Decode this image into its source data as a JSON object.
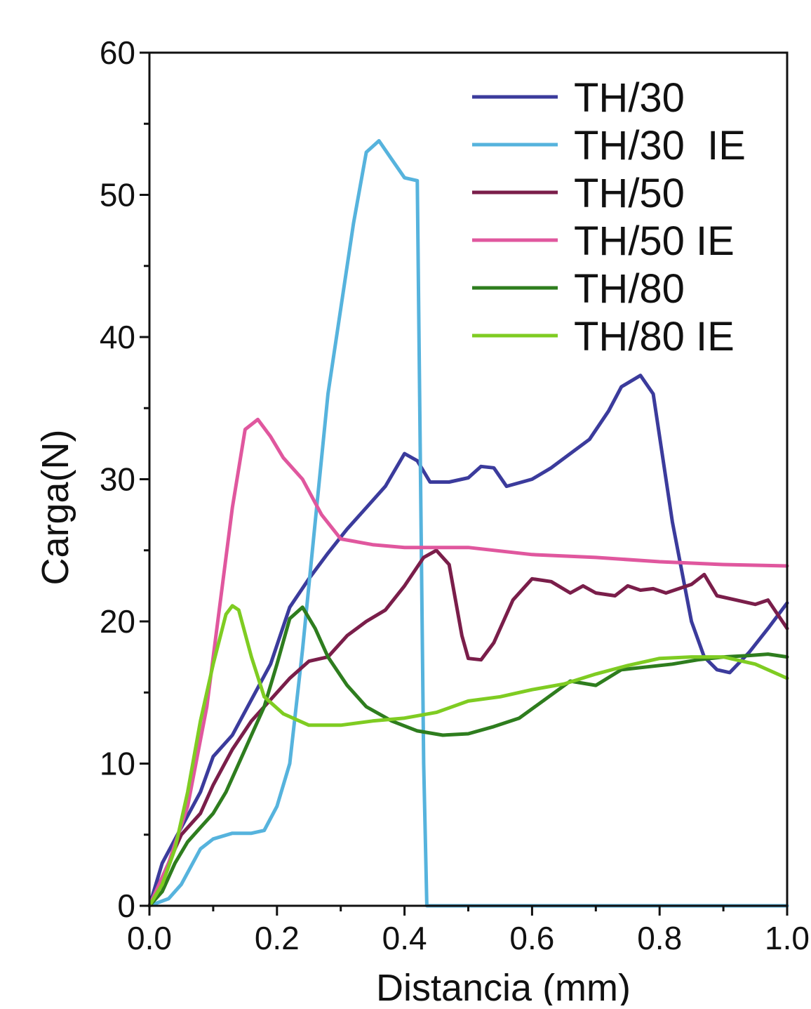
{
  "chart_data": {
    "type": "line",
    "title": "",
    "xlabel": "Distancia (mm)",
    "ylabel": "Carga(N)",
    "xlim": [
      0.0,
      1.0
    ],
    "ylim": [
      0,
      60
    ],
    "grid": false,
    "legend_position": "top-right",
    "x_ticks": [
      "0.0",
      "0.2",
      "0.4",
      "0.6",
      "0.8",
      "1.0"
    ],
    "y_ticks": [
      "0",
      "10",
      "20",
      "30",
      "40",
      "50",
      "60"
    ],
    "series": [
      {
        "name": "TH/30",
        "color": "#3b3b9c",
        "points": [
          [
            0.0,
            0
          ],
          [
            0.02,
            3
          ],
          [
            0.05,
            5.5
          ],
          [
            0.08,
            8
          ],
          [
            0.1,
            10.5
          ],
          [
            0.13,
            12
          ],
          [
            0.16,
            14.5
          ],
          [
            0.19,
            17
          ],
          [
            0.22,
            21
          ],
          [
            0.25,
            23
          ],
          [
            0.28,
            24.8
          ],
          [
            0.31,
            26.5
          ],
          [
            0.34,
            28
          ],
          [
            0.37,
            29.5
          ],
          [
            0.4,
            31.8
          ],
          [
            0.42,
            31.3
          ],
          [
            0.44,
            29.8
          ],
          [
            0.47,
            29.8
          ],
          [
            0.5,
            30.1
          ],
          [
            0.52,
            30.9
          ],
          [
            0.54,
            30.8
          ],
          [
            0.56,
            29.5
          ],
          [
            0.6,
            30
          ],
          [
            0.63,
            30.8
          ],
          [
            0.66,
            31.8
          ],
          [
            0.69,
            32.8
          ],
          [
            0.72,
            34.8
          ],
          [
            0.74,
            36.5
          ],
          [
            0.77,
            37.3
          ],
          [
            0.79,
            36
          ],
          [
            0.82,
            27
          ],
          [
            0.85,
            20
          ],
          [
            0.87,
            17.5
          ],
          [
            0.89,
            16.6
          ],
          [
            0.91,
            16.4
          ],
          [
            0.94,
            17.8
          ],
          [
            0.97,
            19.5
          ],
          [
            1.0,
            21.3
          ]
        ]
      },
      {
        "name": "TH/30  IE",
        "color": "#56b3dd",
        "points": [
          [
            0.0,
            0
          ],
          [
            0.03,
            0.5
          ],
          [
            0.05,
            1.5
          ],
          [
            0.08,
            4
          ],
          [
            0.1,
            4.7
          ],
          [
            0.13,
            5.1
          ],
          [
            0.16,
            5.1
          ],
          [
            0.18,
            5.3
          ],
          [
            0.2,
            7
          ],
          [
            0.22,
            10
          ],
          [
            0.24,
            18
          ],
          [
            0.26,
            27
          ],
          [
            0.28,
            36
          ],
          [
            0.3,
            42
          ],
          [
            0.32,
            48
          ],
          [
            0.34,
            53
          ],
          [
            0.36,
            53.8
          ],
          [
            0.38,
            52.5
          ],
          [
            0.4,
            51.2
          ],
          [
            0.42,
            51
          ],
          [
            0.43,
            10
          ],
          [
            0.435,
            0
          ],
          [
            1.0,
            0
          ]
        ]
      },
      {
        "name": "TH/50",
        "color": "#7a1e4a",
        "points": [
          [
            0.0,
            0
          ],
          [
            0.03,
            3
          ],
          [
            0.05,
            5
          ],
          [
            0.08,
            6.5
          ],
          [
            0.1,
            8.5
          ],
          [
            0.13,
            11
          ],
          [
            0.16,
            13
          ],
          [
            0.19,
            14.5
          ],
          [
            0.22,
            16
          ],
          [
            0.25,
            17.2
          ],
          [
            0.28,
            17.5
          ],
          [
            0.31,
            19
          ],
          [
            0.34,
            20
          ],
          [
            0.37,
            20.8
          ],
          [
            0.4,
            22.5
          ],
          [
            0.43,
            24.5
          ],
          [
            0.45,
            25
          ],
          [
            0.47,
            24
          ],
          [
            0.49,
            19
          ],
          [
            0.5,
            17.4
          ],
          [
            0.52,
            17.3
          ],
          [
            0.54,
            18.5
          ],
          [
            0.57,
            21.5
          ],
          [
            0.6,
            23
          ],
          [
            0.63,
            22.8
          ],
          [
            0.66,
            22
          ],
          [
            0.68,
            22.5
          ],
          [
            0.7,
            22
          ],
          [
            0.73,
            21.8
          ],
          [
            0.75,
            22.5
          ],
          [
            0.77,
            22.2
          ],
          [
            0.79,
            22.3
          ],
          [
            0.81,
            22
          ],
          [
            0.83,
            22.3
          ],
          [
            0.85,
            22.6
          ],
          [
            0.87,
            23.3
          ],
          [
            0.89,
            21.8
          ],
          [
            0.92,
            21.5
          ],
          [
            0.95,
            21.2
          ],
          [
            0.97,
            21.5
          ],
          [
            1.0,
            19.5
          ]
        ]
      },
      {
        "name": "TH/50 IE",
        "color": "#e0579e",
        "points": [
          [
            0.0,
            0
          ],
          [
            0.03,
            3
          ],
          [
            0.06,
            7
          ],
          [
            0.09,
            14
          ],
          [
            0.11,
            21
          ],
          [
            0.13,
            28
          ],
          [
            0.15,
            33.5
          ],
          [
            0.17,
            34.2
          ],
          [
            0.19,
            33
          ],
          [
            0.21,
            31.5
          ],
          [
            0.24,
            30
          ],
          [
            0.27,
            27.5
          ],
          [
            0.3,
            25.8
          ],
          [
            0.35,
            25.4
          ],
          [
            0.4,
            25.2
          ],
          [
            0.5,
            25.2
          ],
          [
            0.6,
            24.7
          ],
          [
            0.7,
            24.5
          ],
          [
            0.8,
            24.2
          ],
          [
            0.9,
            24
          ],
          [
            1.0,
            23.9
          ]
        ]
      },
      {
        "name": "TH/80",
        "color": "#2e7d1e",
        "points": [
          [
            0.0,
            0
          ],
          [
            0.02,
            1
          ],
          [
            0.04,
            3
          ],
          [
            0.06,
            4.5
          ],
          [
            0.08,
            5.5
          ],
          [
            0.1,
            6.5
          ],
          [
            0.12,
            8
          ],
          [
            0.14,
            10
          ],
          [
            0.16,
            12
          ],
          [
            0.18,
            14
          ],
          [
            0.2,
            17
          ],
          [
            0.22,
            20.2
          ],
          [
            0.24,
            21
          ],
          [
            0.26,
            19.5
          ],
          [
            0.28,
            17.5
          ],
          [
            0.31,
            15.5
          ],
          [
            0.34,
            14
          ],
          [
            0.38,
            13
          ],
          [
            0.42,
            12.3
          ],
          [
            0.46,
            12
          ],
          [
            0.5,
            12.1
          ],
          [
            0.54,
            12.6
          ],
          [
            0.58,
            13.2
          ],
          [
            0.62,
            14.5
          ],
          [
            0.66,
            15.8
          ],
          [
            0.7,
            15.5
          ],
          [
            0.74,
            16.6
          ],
          [
            0.78,
            16.8
          ],
          [
            0.82,
            17
          ],
          [
            0.86,
            17.3
          ],
          [
            0.9,
            17.5
          ],
          [
            0.94,
            17.6
          ],
          [
            0.97,
            17.7
          ],
          [
            1.0,
            17.5
          ]
        ]
      },
      {
        "name": "TH/80 IE",
        "color": "#7fcc22",
        "points": [
          [
            0.0,
            0
          ],
          [
            0.02,
            1.5
          ],
          [
            0.04,
            4
          ],
          [
            0.06,
            8
          ],
          [
            0.08,
            13
          ],
          [
            0.1,
            17
          ],
          [
            0.12,
            20.5
          ],
          [
            0.13,
            21.1
          ],
          [
            0.14,
            20.8
          ],
          [
            0.16,
            17.5
          ],
          [
            0.18,
            14.7
          ],
          [
            0.21,
            13.5
          ],
          [
            0.25,
            12.7
          ],
          [
            0.3,
            12.7
          ],
          [
            0.35,
            13
          ],
          [
            0.4,
            13.2
          ],
          [
            0.45,
            13.6
          ],
          [
            0.5,
            14.4
          ],
          [
            0.55,
            14.7
          ],
          [
            0.6,
            15.2
          ],
          [
            0.65,
            15.6
          ],
          [
            0.7,
            16.3
          ],
          [
            0.75,
            16.9
          ],
          [
            0.8,
            17.4
          ],
          [
            0.85,
            17.5
          ],
          [
            0.9,
            17.5
          ],
          [
            0.95,
            17
          ],
          [
            1.0,
            16
          ]
        ]
      }
    ]
  }
}
